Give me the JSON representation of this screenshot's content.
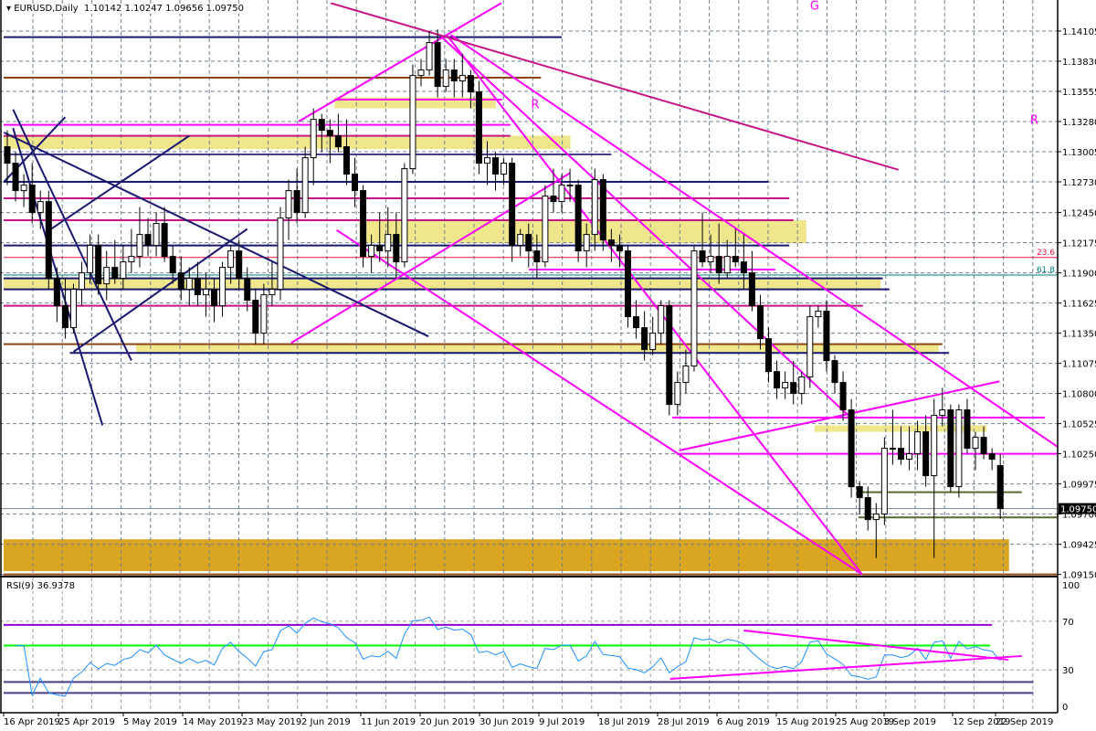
{
  "header": {
    "symbol_label": "EURUSD,Daily",
    "open": "1.10142",
    "high": "1.10247",
    "low": "1.09656",
    "close": "1.09750"
  },
  "rsi": {
    "label": "RSI(9) 36.9378",
    "period": 9,
    "levels_axis": [
      "100",
      "70",
      "30",
      "0"
    ]
  },
  "chart_data": {
    "type": "candlestick",
    "symbol": "EURUSD",
    "timeframe": "Daily",
    "price_ticks": [
      "1.14105",
      "1.13830",
      "1.13555",
      "1.13280",
      "1.13005",
      "1.12730",
      "1.12450",
      "1.12175",
      "1.11900",
      "1.11625",
      "1.11350",
      "1.11075",
      "1.10800",
      "1.10525",
      "1.10250",
      "1.09975",
      "1.09700",
      "1.09425",
      "1.09150"
    ],
    "ylim": [
      1.0912,
      1.144
    ],
    "current_price": "1.09750",
    "date_labels": [
      "16 Apr 2019",
      "25 Apr 2019",
      "5 May 2019",
      "14 May 2019",
      "23 May 2019",
      "2 Jun 2019",
      "11 Jun 2019",
      "20 Jun 2019",
      "30 Jun 2019",
      "9 Jul 2019",
      "18 Jul 2019",
      "28 Jul 2019",
      "6 Aug 2019",
      "15 Aug 2019",
      "25 Aug 2019",
      "3 Sep 2019",
      "12 Sep 2019",
      "22 Sep 2019"
    ],
    "grid": true,
    "colors": {
      "bull": "#ffffff",
      "bear": "#000000",
      "rsi": "#1e90ff",
      "band": "#f0e68c",
      "zone": "#daa520"
    },
    "ohlc": [
      [
        1.1305,
        1.132,
        1.127,
        1.129
      ],
      [
        1.129,
        1.13,
        1.1255,
        1.1265
      ],
      [
        1.1265,
        1.128,
        1.125,
        1.127
      ],
      [
        1.127,
        1.129,
        1.1235,
        1.1245
      ],
      [
        1.1245,
        1.1265,
        1.123,
        1.1255
      ],
      [
        1.1255,
        1.1265,
        1.1175,
        1.1185
      ],
      [
        1.1185,
        1.1195,
        1.1145,
        1.116
      ],
      [
        1.116,
        1.1185,
        1.113,
        1.114
      ],
      [
        1.114,
        1.118,
        1.1135,
        1.1175
      ],
      [
        1.1175,
        1.12,
        1.116,
        1.119
      ],
      [
        1.119,
        1.1225,
        1.118,
        1.1215
      ],
      [
        1.1215,
        1.1225,
        1.117,
        1.118
      ],
      [
        1.118,
        1.121,
        1.1165,
        1.1195
      ],
      [
        1.1195,
        1.122,
        1.118,
        1.1185
      ],
      [
        1.1185,
        1.1215,
        1.1175,
        1.12
      ],
      [
        1.12,
        1.123,
        1.119,
        1.1205
      ],
      [
        1.1205,
        1.125,
        1.1195,
        1.1225
      ],
      [
        1.1225,
        1.124,
        1.1205,
        1.1215
      ],
      [
        1.1215,
        1.1245,
        1.1205,
        1.1235
      ],
      [
        1.1235,
        1.125,
        1.12,
        1.1205
      ],
      [
        1.1205,
        1.1215,
        1.118,
        1.119
      ],
      [
        1.119,
        1.1205,
        1.1165,
        1.1175
      ],
      [
        1.1175,
        1.1195,
        1.116,
        1.1185
      ],
      [
        1.1185,
        1.12,
        1.116,
        1.117
      ],
      [
        1.117,
        1.119,
        1.115,
        1.1175
      ],
      [
        1.1175,
        1.1185,
        1.1145,
        1.116
      ],
      [
        1.116,
        1.12,
        1.115,
        1.1195
      ],
      [
        1.1195,
        1.1215,
        1.118,
        1.121
      ],
      [
        1.121,
        1.122,
        1.1175,
        1.1185
      ],
      [
        1.1185,
        1.1195,
        1.1155,
        1.1165
      ],
      [
        1.1165,
        1.1175,
        1.1125,
        1.1135
      ],
      [
        1.1135,
        1.118,
        1.1125,
        1.117
      ],
      [
        1.117,
        1.12,
        1.116,
        1.1175
      ],
      [
        1.1175,
        1.125,
        1.1165,
        1.124
      ],
      [
        1.124,
        1.1275,
        1.122,
        1.1265
      ],
      [
        1.1265,
        1.1285,
        1.1235,
        1.1245
      ],
      [
        1.1245,
        1.1305,
        1.124,
        1.1295
      ],
      [
        1.1295,
        1.134,
        1.127,
        1.133
      ],
      [
        1.133,
        1.1335,
        1.13,
        1.132
      ],
      [
        1.132,
        1.133,
        1.129,
        1.1315
      ],
      [
        1.1315,
        1.1335,
        1.13,
        1.1305
      ],
      [
        1.1305,
        1.133,
        1.127,
        1.128
      ],
      [
        1.128,
        1.1295,
        1.125,
        1.1265
      ],
      [
        1.1265,
        1.127,
        1.1195,
        1.1205
      ],
      [
        1.1205,
        1.1225,
        1.119,
        1.1215
      ],
      [
        1.1215,
        1.1245,
        1.12,
        1.121
      ],
      [
        1.121,
        1.125,
        1.1195,
        1.1225
      ],
      [
        1.1225,
        1.1245,
        1.1185,
        1.12
      ],
      [
        1.12,
        1.129,
        1.1195,
        1.1285
      ],
      [
        1.1285,
        1.138,
        1.128,
        1.137
      ],
      [
        1.137,
        1.1385,
        1.136,
        1.1375
      ],
      [
        1.1375,
        1.141,
        1.137,
        1.14
      ],
      [
        1.14,
        1.1412,
        1.135,
        1.136
      ],
      [
        1.136,
        1.1385,
        1.1355,
        1.1375
      ],
      [
        1.1375,
        1.1385,
        1.135,
        1.1365
      ],
      [
        1.1365,
        1.139,
        1.135,
        1.137
      ],
      [
        1.137,
        1.1375,
        1.134,
        1.1355
      ],
      [
        1.1355,
        1.1365,
        1.128,
        1.129
      ],
      [
        1.129,
        1.131,
        1.127,
        1.1295
      ],
      [
        1.1295,
        1.13,
        1.1265,
        1.128
      ],
      [
        1.128,
        1.1295,
        1.127,
        1.129
      ],
      [
        1.129,
        1.1295,
        1.12,
        1.1215
      ],
      [
        1.1215,
        1.123,
        1.1205,
        1.1225
      ],
      [
        1.1225,
        1.1235,
        1.1195,
        1.121
      ],
      [
        1.121,
        1.1225,
        1.1185,
        1.12
      ],
      [
        1.12,
        1.127,
        1.1195,
        1.126
      ],
      [
        1.126,
        1.1285,
        1.1245,
        1.1255
      ],
      [
        1.1255,
        1.128,
        1.1245,
        1.127
      ],
      [
        1.127,
        1.1285,
        1.1255,
        1.127
      ],
      [
        1.127,
        1.1275,
        1.12,
        1.121
      ],
      [
        1.121,
        1.1235,
        1.1195,
        1.1225
      ],
      [
        1.1225,
        1.1285,
        1.121,
        1.1275
      ],
      [
        1.1275,
        1.128,
        1.121,
        1.122
      ],
      [
        1.122,
        1.123,
        1.12,
        1.1215
      ],
      [
        1.1215,
        1.1225,
        1.1195,
        1.121
      ],
      [
        1.121,
        1.1215,
        1.114,
        1.115
      ],
      [
        1.115,
        1.1165,
        1.113,
        1.114
      ],
      [
        1.114,
        1.1155,
        1.111,
        1.112
      ],
      [
        1.112,
        1.115,
        1.1115,
        1.1135
      ],
      [
        1.1135,
        1.1165,
        1.1125,
        1.116
      ],
      [
        1.116,
        1.1165,
        1.106,
        1.107
      ],
      [
        1.107,
        1.11,
        1.106,
        1.109
      ],
      [
        1.109,
        1.112,
        1.108,
        1.1105
      ],
      [
        1.1105,
        1.1215,
        1.11,
        1.121
      ],
      [
        1.121,
        1.1245,
        1.1195,
        1.12
      ],
      [
        1.12,
        1.1225,
        1.119,
        1.1205
      ],
      [
        1.1205,
        1.1235,
        1.118,
        1.119
      ],
      [
        1.119,
        1.122,
        1.1185,
        1.1205
      ],
      [
        1.1205,
        1.123,
        1.1195,
        1.12
      ],
      [
        1.12,
        1.1225,
        1.1175,
        1.119
      ],
      [
        1.119,
        1.121,
        1.1155,
        1.116
      ],
      [
        1.116,
        1.117,
        1.112,
        1.113
      ],
      [
        1.113,
        1.114,
        1.109,
        1.11
      ],
      [
        1.11,
        1.111,
        1.1075,
        1.1085
      ],
      [
        1.1085,
        1.11,
        1.1075,
        1.109
      ],
      [
        1.109,
        1.111,
        1.107,
        1.108
      ],
      [
        1.108,
        1.11,
        1.107,
        1.1095
      ],
      [
        1.1095,
        1.116,
        1.1085,
        1.115
      ],
      [
        1.115,
        1.116,
        1.114,
        1.1155
      ],
      [
        1.1155,
        1.1165,
        1.11,
        1.111
      ],
      [
        1.111,
        1.1115,
        1.108,
        1.109
      ],
      [
        1.109,
        1.11,
        1.1055,
        1.1065
      ],
      [
        1.1065,
        1.1075,
        1.0985,
        1.0995
      ],
      [
        1.0995,
        1.1,
        1.097,
        1.0985
      ],
      [
        1.0985,
        1.0995,
        1.0955,
        1.0965
      ],
      [
        1.0965,
        1.098,
        1.093,
        1.097
      ],
      [
        1.097,
        1.104,
        1.096,
        1.103
      ],
      [
        1.103,
        1.1065,
        1.1015,
        1.103
      ],
      [
        1.103,
        1.105,
        1.1015,
        1.102
      ],
      [
        1.102,
        1.105,
        1.101,
        1.1025
      ],
      [
        1.1025,
        1.1055,
        1.101,
        1.1045
      ],
      [
        1.1045,
        1.106,
        1.0995,
        1.1005
      ],
      [
        1.1005,
        1.1075,
        1.093,
        1.106
      ],
      [
        1.106,
        1.1085,
        1.105,
        1.1065
      ],
      [
        1.1065,
        1.107,
        1.099,
        1.0995
      ],
      [
        1.0995,
        1.107,
        1.0985,
        1.1065
      ],
      [
        1.1065,
        1.1075,
        1.1025,
        1.103
      ],
      [
        1.103,
        1.1045,
        1.101,
        1.104
      ],
      [
        1.104,
        1.105,
        1.102,
        1.1025
      ],
      [
        1.1025,
        1.103,
        1.101,
        1.102
      ],
      [
        1.10142,
        1.10247,
        1.09656,
        1.0975
      ]
    ],
    "zones": [
      {
        "from": 1.0918,
        "to": 1.0947,
        "start": 0,
        "end": 121.5,
        "color": "#daa520"
      },
      {
        "from": 1.134,
        "to": 1.135,
        "start": 40,
        "end": 59.5,
        "color": "#f0e68c"
      },
      {
        "from": 1.1303,
        "to": 1.1315,
        "start": 0,
        "end": 68.5,
        "color": "#f0e68c"
      },
      {
        "from": 1.1217,
        "to": 1.1238,
        "start": 43,
        "end": 97,
        "color": "#f0e68c"
      },
      {
        "from": 1.1175,
        "to": 1.1186,
        "start": 0,
        "end": 106,
        "color": "#f0e68c"
      },
      {
        "from": 1.1117,
        "to": 1.1125,
        "start": 16,
        "end": 113,
        "color": "#f0e68c"
      },
      {
        "from": 1.1045,
        "to": 1.1051,
        "start": 98,
        "end": 118.8,
        "color": "#f0e68c"
      }
    ],
    "hlines": [
      {
        "price": 1.1405,
        "start": 0,
        "end": 67,
        "color": "#191970"
      },
      {
        "price": 1.1368,
        "start": 0,
        "end": 64.5,
        "color": "#8b4513"
      },
      {
        "price": 1.1348,
        "start": 40,
        "end": 59.8,
        "color": "#ff00ff"
      },
      {
        "price": 1.1325,
        "start": 0,
        "end": 60.8,
        "color": "#ff00ff"
      },
      {
        "price": 1.1315,
        "start": 0,
        "end": 60.8,
        "color": "#c71585"
      },
      {
        "price": 1.1298,
        "start": 0,
        "end": 73,
        "color": "#483d8b"
      },
      {
        "price": 1.1273,
        "start": 0,
        "end": 92,
        "color": "#191970"
      },
      {
        "price": 1.1258,
        "start": 0,
        "end": 94.5,
        "color": "#c71585"
      },
      {
        "price": 1.1238,
        "start": 0,
        "end": 95,
        "color": "#c71585"
      },
      {
        "price": 1.1215,
        "start": 0,
        "end": 94.5,
        "color": "#191970"
      },
      {
        "price": 1.1204,
        "start": 0,
        "end": 127.5,
        "color": "#dc143c",
        "label": "23.6"
      },
      {
        "price": 1.1193,
        "start": 63.5,
        "end": 92.8,
        "color": "#ff00ff"
      },
      {
        "price": 1.1188,
        "start": 0,
        "end": 127.5,
        "color": "#008080",
        "label": "61.8"
      },
      {
        "price": 1.1185,
        "start": 0,
        "end": 105.8,
        "color": "#191970"
      },
      {
        "price": 1.1175,
        "start": 0,
        "end": 106.6,
        "color": "#191970"
      },
      {
        "price": 1.116,
        "start": 0,
        "end": 103.4,
        "color": "#c71585"
      },
      {
        "price": 1.1125,
        "start": 0,
        "end": 113,
        "color": "#8b4513"
      },
      {
        "price": 1.1117,
        "start": 8,
        "end": 113.8,
        "color": "#191970"
      },
      {
        "price": 1.1058,
        "start": 80.8,
        "end": 125.4,
        "color": "#ff00ff"
      },
      {
        "price": 1.1025,
        "start": 81.3,
        "end": 127,
        "color": "#ff00ff"
      },
      {
        "price": 1.099,
        "start": 103.3,
        "end": 122.6,
        "color": "#556b2f"
      },
      {
        "price": 1.0967,
        "start": 103.3,
        "end": 127,
        "color": "#556b2f"
      },
      {
        "price": 1.0915,
        "start": 0,
        "end": 127.5,
        "color": "#8b4513"
      }
    ],
    "trendlines": [
      {
        "b1": 35.2,
        "p1": 1.1328,
        "b2": 59.7,
        "p2": 1.1436,
        "color": "#ff00ff"
      },
      {
        "b1": 53.1,
        "p1": 1.1407,
        "b2": 103.3,
        "p2": 1.0915,
        "color": "#ff00ff"
      },
      {
        "b1": 53.6,
        "p1": 1.1407,
        "b2": 127,
        "p2": 1.1031,
        "color": "#ff00ff"
      },
      {
        "b1": 52.5,
        "p1": 1.1405,
        "b2": 102.2,
        "p2": 1.1056,
        "color": "#ff00ff"
      },
      {
        "b1": 39.8,
        "p1": 1.1229,
        "b2": 103.3,
        "p2": 1.0915,
        "color": "#ff00ff"
      },
      {
        "b1": 34.3,
        "p1": 1.1126,
        "b2": 68,
        "p2": 1.1281,
        "color": "#ff00ff"
      },
      {
        "b1": 81.2,
        "p1": 1.1028,
        "b2": 119.9,
        "p2": 1.1091,
        "color": "#ff00ff"
      },
      {
        "b1": 39.1,
        "p1": 1.1436,
        "b2": 107.7,
        "p2": 1.1284,
        "color": "#c71585"
      },
      {
        "b1": -0.4,
        "p1": 1.1318,
        "b2": 50.9,
        "p2": 1.1132,
        "color": "#191970"
      },
      {
        "b1": 0.7,
        "p1": 1.1322,
        "b2": 11.5,
        "p2": 1.1051,
        "color": "#191970"
      },
      {
        "b1": 0.7,
        "p1": 1.1339,
        "b2": 15,
        "p2": 1.111,
        "color": "#191970"
      },
      {
        "b1": -0.4,
        "p1": 1.1273,
        "b2": 7,
        "p2": 1.1332,
        "color": "#191970"
      },
      {
        "b1": 5.3,
        "p1": 1.123,
        "b2": 22,
        "p2": 1.1315,
        "color": "#191970"
      },
      {
        "b1": 8,
        "p1": 1.1118,
        "b2": 29,
        "p2": 1.123,
        "color": "#191970"
      }
    ],
    "text_labels": [
      {
        "text": "G",
        "bar": 97,
        "price": 1.143,
        "color": "#ff00ff"
      },
      {
        "text": "R",
        "bar": 63.3,
        "price": 1.134,
        "color": "#ff00ff"
      },
      {
        "text": "R",
        "bar": 123.6,
        "price": 1.1326,
        "color": "#ff00ff"
      }
    ],
    "rsi_hlines": [
      {
        "value": 67,
        "start": 0,
        "end": 119,
        "color": "#9400d3"
      },
      {
        "value": 50,
        "start": 0,
        "end": 118.8,
        "color": "#00ff00"
      },
      {
        "value": 20,
        "start": 0,
        "end": 124,
        "color": "#483d8b"
      },
      {
        "value": 11,
        "start": 0,
        "end": 124,
        "color": "#483d8b"
      }
    ],
    "rsi_trendlines": [
      {
        "b1": 89,
        "v1": 62.4,
        "b2": 121,
        "v2": 38.3,
        "color": "#ff00ff"
      },
      {
        "b1": 80.1,
        "v1": 22.6,
        "b2": 122.6,
        "v2": 41.4,
        "color": "#ff00ff"
      }
    ]
  }
}
